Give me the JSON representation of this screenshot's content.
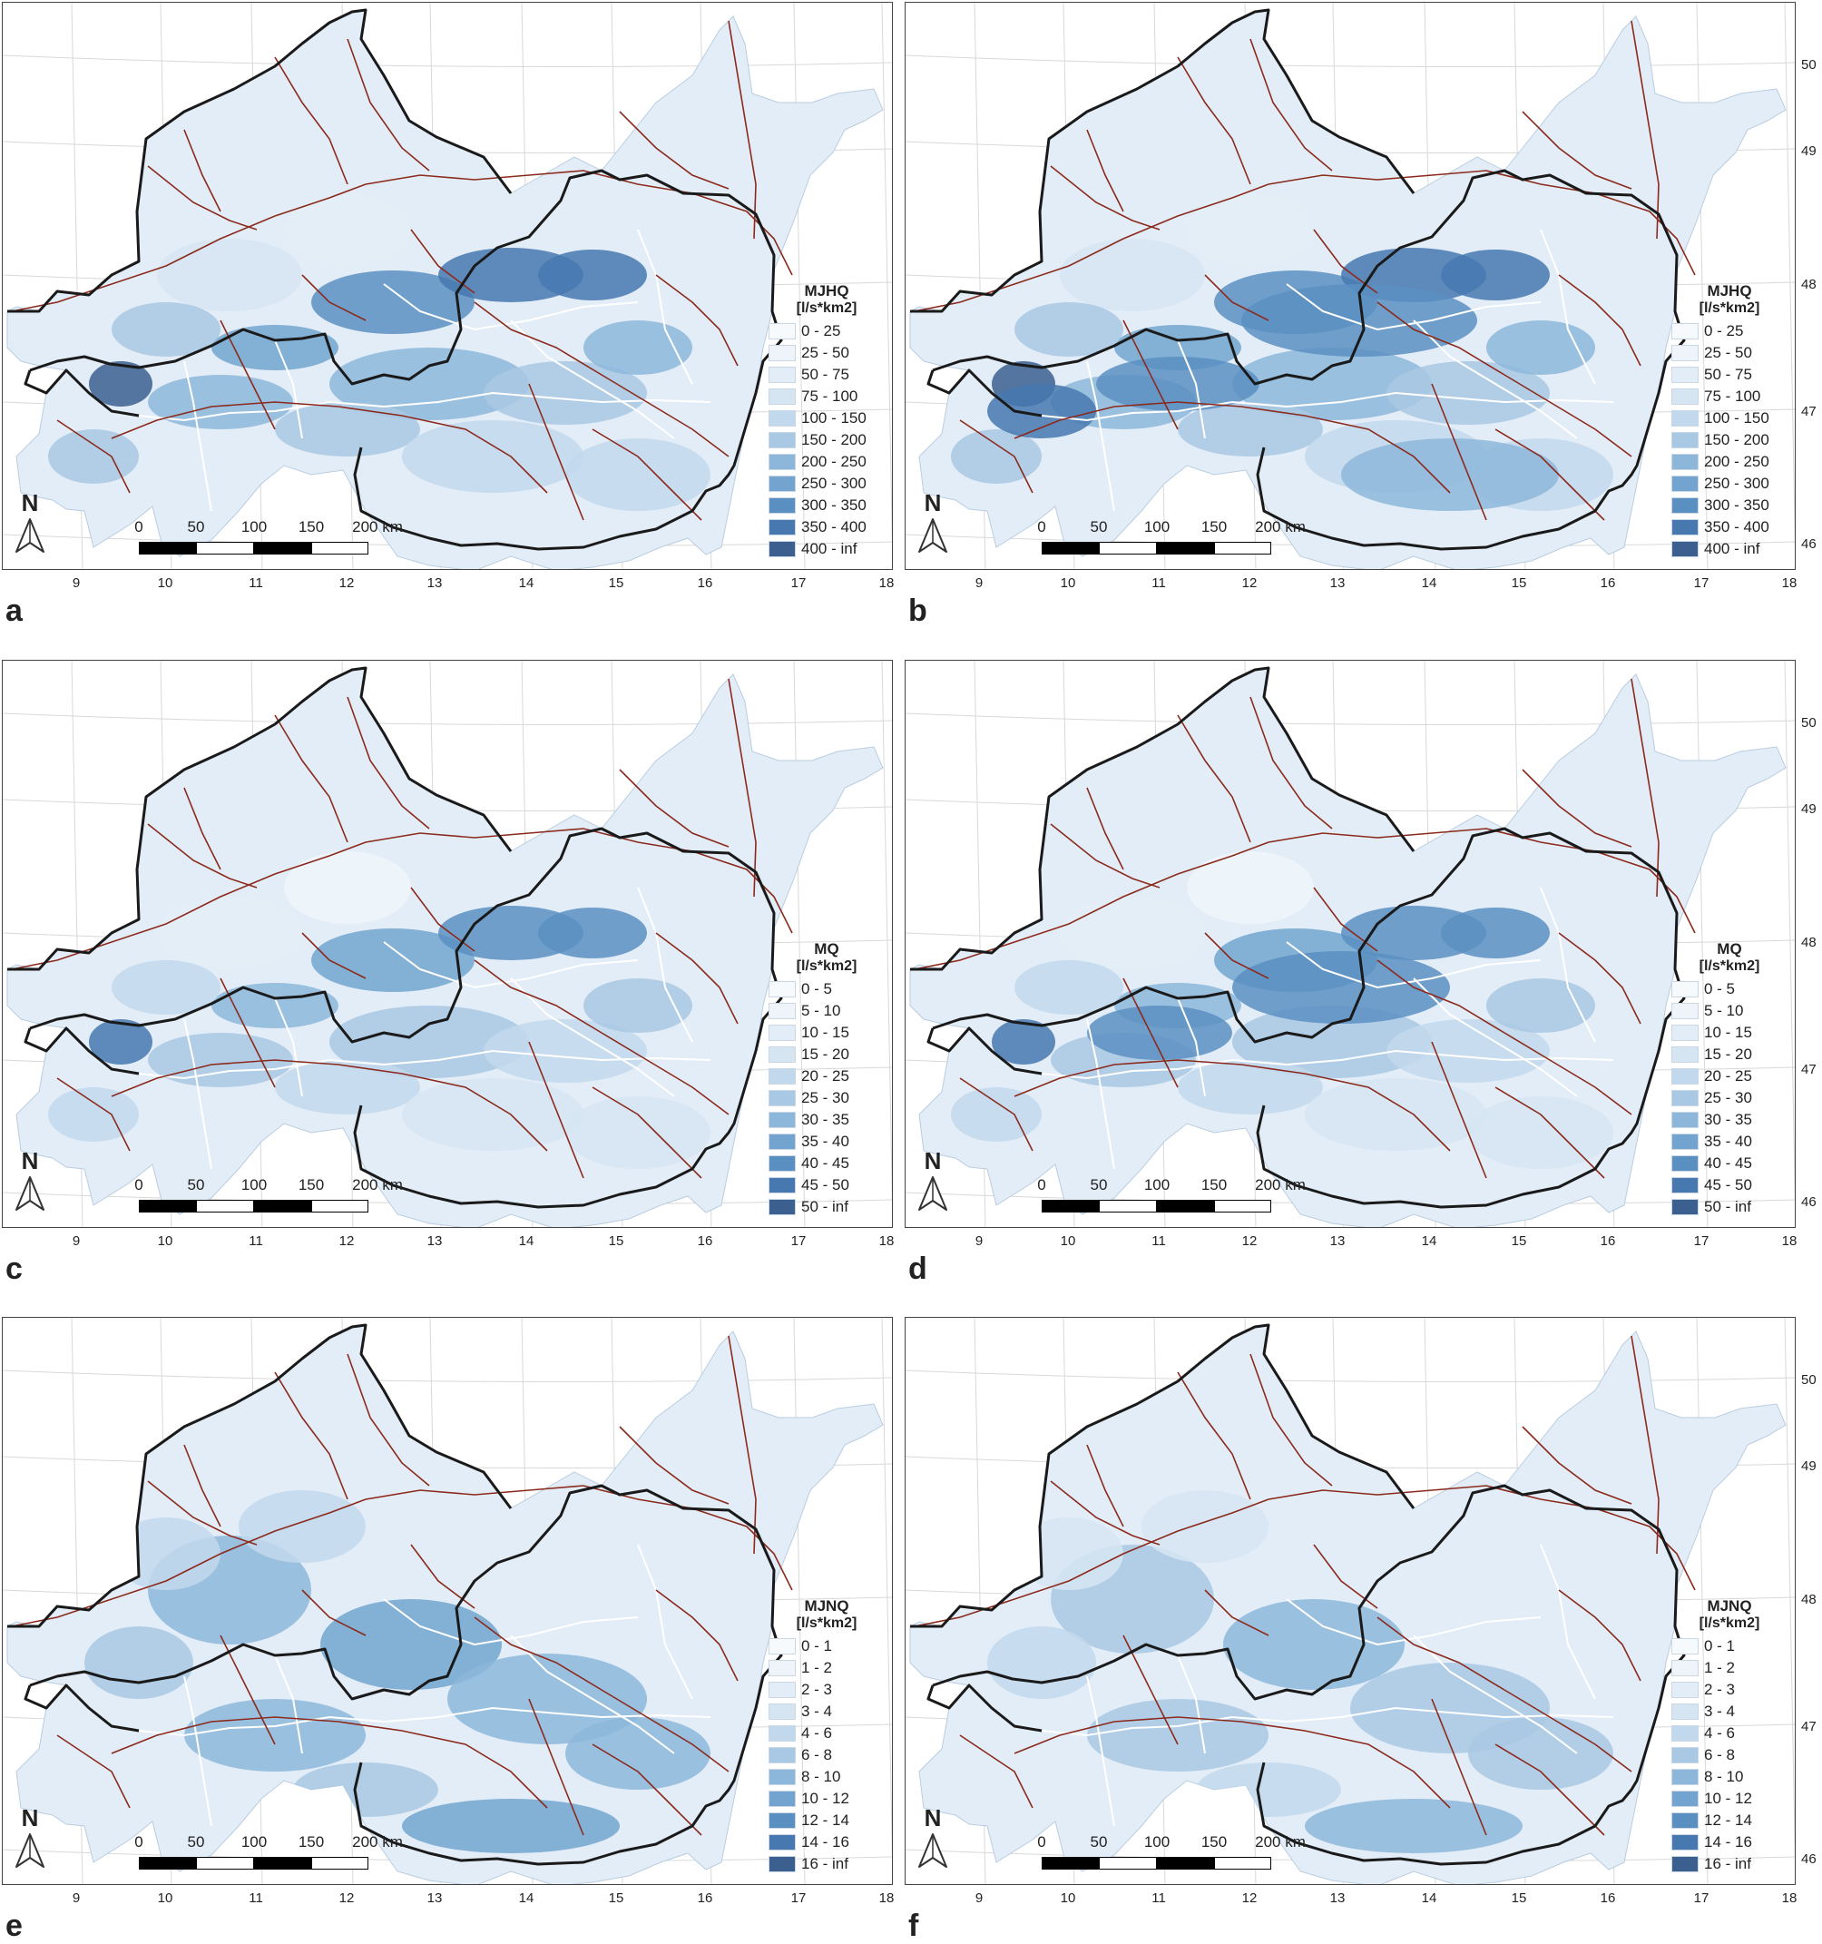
{
  "x_ticks": [
    "9",
    "10",
    "11",
    "12",
    "13",
    "14",
    "15",
    "16",
    "17",
    "18"
  ],
  "y_ticks": [
    "50",
    "49",
    "48",
    "47",
    "46"
  ],
  "scale_labels": [
    "0",
    "50",
    "100",
    "150",
    "200 km"
  ],
  "north_label": "N",
  "north_icon": "north-arrow-icon",
  "classes_MJHQ": [
    "0 - 25",
    "25 - 50",
    "50 - 75",
    "75 - 100",
    "100 - 150",
    "150 - 200",
    "200 - 250",
    "250 - 300",
    "300 - 350",
    "350 - 400",
    "400 - inf"
  ],
  "classes_MQ": [
    "0 - 5",
    "5 - 10",
    "10 - 15",
    "15 - 20",
    "20 - 25",
    "25 - 30",
    "30 - 35",
    "35 - 40",
    "40 - 45",
    "45 - 50",
    "50 - inf"
  ],
  "classes_MJNQ": [
    "0 - 1",
    "1 - 2",
    "2 - 3",
    "3 - 4",
    "4 - 6",
    "6 - 8",
    "8 - 10",
    "10 - 12",
    "12 - 14",
    "14 - 16",
    "16 - inf"
  ],
  "ramp": [
    "#f7fafd",
    "#eef4fa",
    "#e3edf7",
    "#d6e5f2",
    "#c2d8ec",
    "#a9c8e3",
    "#8db7da",
    "#72a4cf",
    "#5a8fc2",
    "#4778b0",
    "#3b5f8f"
  ],
  "river_color": "#8b2a1c",
  "border_color": "#1a1a1a",
  "panels": [
    {
      "label": "a",
      "title": "MJHQ",
      "unit": "[l/s*km2]",
      "classes": "classes_MJHQ",
      "right_axis": false
    },
    {
      "label": "b",
      "title": "MJHQ",
      "unit": "[l/s*km2]",
      "classes": "classes_MJHQ",
      "right_axis": true
    },
    {
      "label": "c",
      "title": "MQ",
      "unit": "[l/s*km2]",
      "classes": "classes_MQ",
      "right_axis": false
    },
    {
      "label": "d",
      "title": "MQ",
      "unit": "[l/s*km2]",
      "classes": "classes_MQ",
      "right_axis": true
    },
    {
      "label": "e",
      "title": "MJNQ",
      "unit": "[l/s*km2]",
      "classes": "classes_MJNQ",
      "right_axis": false
    },
    {
      "label": "f",
      "title": "MJNQ",
      "unit": "[l/s*km2]",
      "classes": "classes_MJNQ",
      "right_axis": true
    }
  ]
}
